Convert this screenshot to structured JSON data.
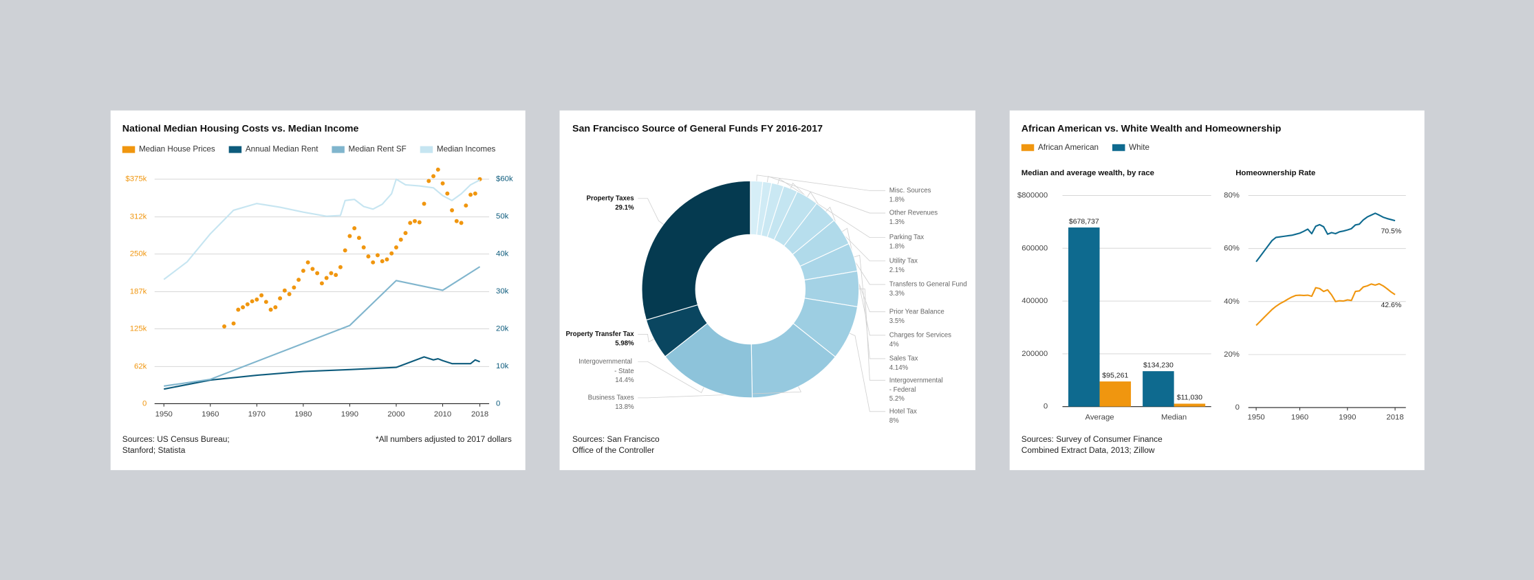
{
  "chart_data": [
    {
      "type": "line",
      "title": "National Median Housing Costs vs. Median Income",
      "xlim": [
        1948,
        2020
      ],
      "xticks": [
        1950,
        1960,
        1970,
        1980,
        1990,
        2000,
        2010,
        2018
      ],
      "ylim": [
        0,
        400000
      ],
      "yticks": [
        0,
        {
          "value": 62000,
          "label": "62k"
        },
        {
          "value": 125000,
          "label": "125k"
        },
        {
          "value": 187000,
          "label": "187k"
        },
        {
          "value": 250000,
          "label": "250k"
        },
        {
          "value": 312000,
          "label": "312k"
        },
        {
          "value": 375000,
          "label": "$375k"
        }
      ],
      "y2lim": [
        0,
        64000
      ],
      "y2ticks": [
        0,
        {
          "value": 10000,
          "label": "10k"
        },
        {
          "value": 20000,
          "label": "20k"
        },
        {
          "value": 30000,
          "label": "30k"
        },
        {
          "value": 40000,
          "label": "40k"
        },
        {
          "value": 50000,
          "label": "50k"
        },
        {
          "value": 60000,
          "label": "$60k"
        }
      ],
      "grid": true,
      "series": [
        {
          "name": "Median House Prices",
          "color": "#f0960f",
          "type": "scatter",
          "axis": "y",
          "x": [
            1963,
            1965,
            1966,
            1967,
            1968,
            1969,
            1970,
            1971,
            1972,
            1973,
            1974,
            1975,
            1976,
            1977,
            1978,
            1979,
            1980,
            1981,
            1982,
            1983,
            1984,
            1985,
            1986,
            1987,
            1988,
            1989,
            1990,
            1991,
            1992,
            1993,
            1994,
            1995,
            1996,
            1997,
            1998,
            1999,
            2000,
            2001,
            2002,
            2003,
            2004,
            2005,
            2006,
            2007,
            2008,
            2009,
            2010,
            2011,
            2012,
            2013,
            2014,
            2015,
            2016,
            2017,
            2018
          ],
          "values": [
            129000,
            134000,
            157000,
            161000,
            166000,
            171000,
            174000,
            181000,
            170000,
            157000,
            161000,
            176000,
            189000,
            183000,
            194000,
            207000,
            222000,
            236000,
            225000,
            218000,
            201000,
            210000,
            218000,
            215000,
            228000,
            256000,
            280000,
            293000,
            277000,
            261000,
            246000,
            236000,
            248000,
            238000,
            241000,
            251000,
            261000,
            274000,
            285000,
            302000,
            305000,
            303000,
            334000,
            372000,
            380000,
            391000,
            368000,
            351000,
            323000,
            305000,
            302000,
            331000,
            349000,
            351000,
            375000
          ]
        },
        {
          "name": "Annual Median Rent",
          "color": "#0d5b7c",
          "type": "line",
          "axis": "y2",
          "x": [
            1950,
            1960,
            1970,
            1980,
            1990,
            2000,
            2006,
            2008,
            2009,
            2010,
            2012,
            2016,
            2017,
            2018
          ],
          "values": [
            3900,
            6300,
            7600,
            8600,
            9100,
            9700,
            12500,
            11700,
            12000,
            11500,
            10700,
            10700,
            11700,
            11200
          ]
        },
        {
          "name": "Median Rent SF",
          "color": "#80b5cd",
          "type": "line",
          "axis": "y2",
          "x": [
            1950,
            1960,
            1990,
            2000,
            2010,
            2018
          ],
          "values": [
            4700,
            6500,
            20900,
            32900,
            30300,
            36600
          ]
        },
        {
          "name": "Median Incomes",
          "color": "#c6e5f1",
          "type": "line",
          "axis": "y2",
          "x": [
            1950,
            1955,
            1960,
            1965,
            1970,
            1975,
            1980,
            1985,
            1988,
            1989,
            1991,
            1993,
            1995,
            1997,
            1999,
            2000,
            2002,
            2005,
            2008,
            2010,
            2012,
            2014,
            2016,
            2018
          ],
          "values": [
            33200,
            37900,
            45400,
            51700,
            53500,
            52500,
            51200,
            50100,
            50300,
            54300,
            54600,
            52700,
            52000,
            53300,
            56100,
            60000,
            58500,
            58200,
            57700,
            55600,
            54300,
            56100,
            58500,
            59800
          ]
        }
      ],
      "sources": [
        "Sources: US Census Bureau;",
        "Stanford; Statista"
      ],
      "note": "*All numbers adjusted to 2017  dollars"
    },
    {
      "type": "donut",
      "title": "San Francisco Source of General Funds FY 2016-2017",
      "categories": [
        "Misc. Sources",
        "Other Revenues",
        "Parking Tax",
        "Utility Tax",
        "Transfers to General Fund",
        "Prior Year Balance",
        "Charges for Services",
        "Sales Tax",
        "Intergovernmental - Federal",
        "Hotel Tax",
        "Business Taxes",
        "Intergovernmental - State",
        "Property Transfer Tax",
        "Property Taxes"
      ],
      "values": [
        1.8,
        1.3,
        1.8,
        2.1,
        3.3,
        3.5,
        4,
        4.14,
        5.2,
        8,
        13.8,
        14.4,
        5.98,
        29.1
      ],
      "value_labels": [
        "1.8%",
        "1.3%",
        "1.8%",
        "2.1%",
        "3.3%",
        "3.5%",
        "4%",
        "4.14%",
        "5.2%",
        "8%",
        "13.8%",
        "14.4%",
        "5.98%",
        "29.1%"
      ],
      "colors": [
        "#d6eef7",
        "#d0ebf5",
        "#cae8f3",
        "#c4e5f1",
        "#bee2ef",
        "#b7deed",
        "#b0daea",
        "#aad6e8",
        "#a4d2e5",
        "#9dcee2",
        "#96c9df",
        "#8dc3da",
        "#0a4660",
        "#053a50"
      ],
      "sources": [
        "Sources: San Francisco",
        "Office of the Controller"
      ]
    },
    {
      "type": "bar",
      "title": "African American vs. White Wealth and Homeownership",
      "subtitle": "Median and average wealth, by race",
      "categories": [
        "Average",
        "Median"
      ],
      "ylim": [
        0,
        800000
      ],
      "yticks": [
        0,
        200000,
        400000,
        600000,
        {
          "value": 800000,
          "label": "$800000"
        }
      ],
      "grid": true,
      "series": [
        {
          "name": "African American",
          "color": "#f0960f",
          "values": [
            95261,
            11030
          ],
          "value_labels": [
            "$95,261",
            "$11,030"
          ]
        },
        {
          "name": "White",
          "color": "#0e6a8f",
          "values": [
            678737,
            134230
          ],
          "value_labels": [
            "$678,737",
            "$134,230"
          ]
        }
      ],
      "sources": [
        "Sources: Survey of Consumer Finance",
        "Combined Extract Data, 2013; Zillow"
      ]
    },
    {
      "type": "line",
      "subtitle": "Homeownership Rate",
      "categories": [
        "1950",
        null,
        null,
        null,
        null,
        null,
        null,
        null,
        null,
        null,
        null,
        "1960",
        null,
        null,
        null,
        null,
        null,
        null,
        null,
        null,
        null,
        null,
        null,
        "1990",
        null,
        null,
        null,
        null,
        null,
        null,
        null,
        null,
        null,
        null,
        null,
        "2018"
      ],
      "ylim": [
        0,
        80
      ],
      "yticks": [
        0,
        {
          "value": 20,
          "label": "20%"
        },
        {
          "value": 40,
          "label": "40%"
        },
        {
          "value": 60,
          "label": "60%"
        },
        {
          "value": 80,
          "label": "80%"
        }
      ],
      "grid": true,
      "series": [
        {
          "color": "#f0960f",
          "values": [
            31.0,
            32.5,
            34.0,
            35.5,
            37.0,
            38.2,
            39.2,
            40.0,
            40.9,
            41.7,
            42.3,
            42.4,
            42.3,
            42.4,
            42.0,
            45.2,
            44.9,
            43.8,
            44.4,
            42.5,
            40.0,
            40.3,
            40.2,
            40.6,
            40.4,
            43.8,
            44.0,
            45.5,
            45.9,
            46.6,
            46.2,
            46.7,
            45.9,
            44.8,
            43.6,
            42.6
          ],
          "value_labels": [
            null,
            null,
            null,
            null,
            null,
            null,
            null,
            null,
            null,
            null,
            null,
            null,
            null,
            null,
            null,
            null,
            null,
            null,
            null,
            null,
            null,
            null,
            null,
            null,
            null,
            null,
            null,
            null,
            null,
            null,
            null,
            null,
            null,
            null,
            null,
            "42.6%"
          ]
        },
        {
          "color": "#0e6a8f",
          "values": [
            55.0,
            57,
            59,
            61,
            63,
            64.2,
            64.4,
            64.6,
            64.8,
            65.0,
            65.4,
            65.8,
            66.5,
            67.3,
            65.6,
            68.4,
            69.0,
            68.2,
            65.4,
            66.0,
            65.6,
            66.3,
            66.6,
            67.0,
            67.5,
            68.9,
            69.2,
            70.8,
            71.9,
            72.6,
            73.3,
            72.6,
            71.8,
            71.3,
            70.9,
            70.5
          ],
          "value_labels": [
            null,
            null,
            null,
            null,
            null,
            null,
            null,
            null,
            null,
            null,
            null,
            null,
            null,
            null,
            null,
            null,
            null,
            null,
            null,
            null,
            null,
            null,
            null,
            null,
            null,
            null,
            null,
            null,
            null,
            null,
            null,
            null,
            null,
            null,
            null,
            "70.5%"
          ]
        }
      ]
    }
  ]
}
